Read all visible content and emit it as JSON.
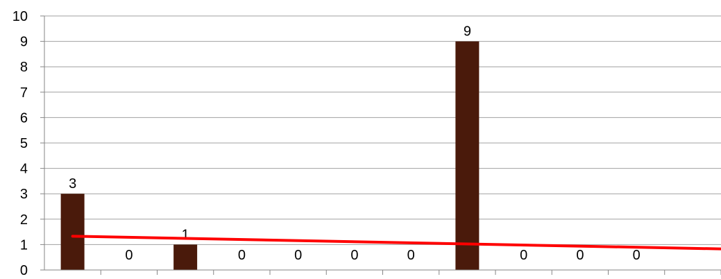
{
  "chart_data": {
    "type": "bar",
    "categories": [
      "",
      "",
      "",
      "",
      "",
      "",
      "",
      "",
      "",
      "",
      "",
      ""
    ],
    "values": [
      3,
      0,
      1,
      0,
      0,
      0,
      0,
      9,
      0,
      0,
      0,
      0
    ],
    "data_labels": [
      "3",
      "0",
      "1",
      "0",
      "0",
      "0",
      "0",
      "9",
      "0",
      "0",
      "0",
      ""
    ],
    "ylim": [
      0,
      10
    ],
    "yticks": [
      0,
      1,
      2,
      3,
      4,
      5,
      6,
      7,
      8,
      9,
      10
    ],
    "grid": true,
    "legend": "none",
    "title": "",
    "xlabel": "",
    "ylabel": "",
    "trendline": {
      "type": "linear",
      "start": 1.33,
      "end": 0.83
    },
    "colors": {
      "bar": "#4a1a0b",
      "trendline": "#ff0000",
      "grid": "#a0a0a0",
      "axis": "#868686",
      "text": "#000000"
    }
  }
}
